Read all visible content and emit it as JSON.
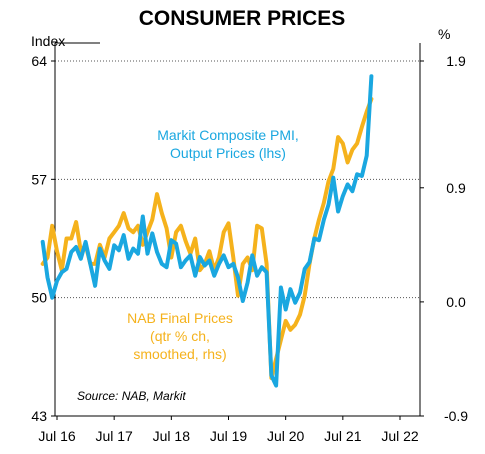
{
  "chart_data": {
    "type": "line",
    "title": "CONSUMER PRICES",
    "left_axis_unit": "Index",
    "right_axis_unit": "%",
    "left_ylim": [
      43,
      64
    ],
    "right_ylim": [
      -0.9,
      1.9
    ],
    "left_ticks": [
      "64",
      "57",
      "50",
      "43"
    ],
    "right_ticks": [
      "1.9",
      "0.9",
      "0.0",
      "-0.9"
    ],
    "x_ticks": [
      "Jul 16",
      "Jul 17",
      "Jul 18",
      "Jul 19",
      "Jul 20",
      "Jul 21",
      "Jul 22"
    ],
    "x_tick_dates": [
      "2016-07",
      "2017-07",
      "2018-07",
      "2019-07",
      "2020-07",
      "2021-07",
      "2022-07"
    ],
    "grid": "horizontal dotted at 64, 57 and 50 (left axis)",
    "series": [
      {
        "name": "Markit Composite PMI, Output Prices (lhs)",
        "label_lines": [
          "Markit Composite PMI,",
          "Output Prices (lhs)"
        ],
        "axis": "left",
        "color": "#1aa7e0",
        "points": [
          [
            "2016-04",
            53.3
          ],
          [
            "2016-05",
            51.2
          ],
          [
            "2016-06",
            50.0
          ],
          [
            "2016-07",
            51.0
          ],
          [
            "2016-08",
            51.5
          ],
          [
            "2016-09",
            51.7
          ],
          [
            "2016-10",
            52.7
          ],
          [
            "2016-11",
            53.0
          ],
          [
            "2016-12",
            52.3
          ],
          [
            "2017-01",
            53.3
          ],
          [
            "2017-02",
            52.0
          ],
          [
            "2017-03",
            50.7
          ],
          [
            "2017-04",
            52.9
          ],
          [
            "2017-05",
            52.2
          ],
          [
            "2017-06",
            51.7
          ],
          [
            "2017-07",
            53.1
          ],
          [
            "2017-08",
            52.8
          ],
          [
            "2017-09",
            53.7
          ],
          [
            "2017-10",
            52.3
          ],
          [
            "2017-11",
            52.9
          ],
          [
            "2017-12",
            52.6
          ],
          [
            "2018-01",
            54.8
          ],
          [
            "2018-02",
            52.6
          ],
          [
            "2018-03",
            53.8
          ],
          [
            "2018-04",
            52.7
          ],
          [
            "2018-05",
            52.0
          ],
          [
            "2018-06",
            51.8
          ],
          [
            "2018-07",
            53.4
          ],
          [
            "2018-08",
            53.2
          ],
          [
            "2018-09",
            51.8
          ],
          [
            "2018-10",
            52.2
          ],
          [
            "2018-11",
            52.5
          ],
          [
            "2018-12",
            51.3
          ],
          [
            "2019-01",
            52.4
          ],
          [
            "2019-02",
            51.9
          ],
          [
            "2019-03",
            52.2
          ],
          [
            "2019-04",
            51.3
          ],
          [
            "2019-05",
            52.0
          ],
          [
            "2019-06",
            52.5
          ],
          [
            "2019-07",
            51.8
          ],
          [
            "2019-08",
            52.0
          ],
          [
            "2019-09",
            51.2
          ],
          [
            "2019-10",
            49.8
          ],
          [
            "2019-11",
            50.9
          ],
          [
            "2019-12",
            52.5
          ],
          [
            "2020-01",
            51.3
          ],
          [
            "2020-02",
            51.8
          ],
          [
            "2020-03",
            51.5
          ],
          [
            "2020-04",
            45.4
          ],
          [
            "2020-05",
            44.8
          ],
          [
            "2020-06",
            50.6
          ],
          [
            "2020-07",
            49.3
          ],
          [
            "2020-08",
            50.5
          ],
          [
            "2020-09",
            49.7
          ],
          [
            "2020-10",
            50.3
          ],
          [
            "2020-11",
            51.7
          ],
          [
            "2020-12",
            52.1
          ],
          [
            "2021-01",
            53.5
          ],
          [
            "2021-02",
            53.4
          ],
          [
            "2021-03",
            54.6
          ],
          [
            "2021-04",
            55.5
          ],
          [
            "2021-05",
            57.1
          ],
          [
            "2021-06",
            55.1
          ],
          [
            "2021-07",
            56.0
          ],
          [
            "2021-08",
            56.7
          ],
          [
            "2021-09",
            56.3
          ],
          [
            "2021-10",
            57.3
          ],
          [
            "2021-11",
            57.2
          ],
          [
            "2021-12",
            58.4
          ],
          [
            "2022-01",
            63.1
          ]
        ]
      },
      {
        "name": "NAB Final Prices (qtr % ch, smoothed, rhs)",
        "label_lines": [
          "NAB Final Prices",
          "(qtr % ch,",
          "smoothed, rhs)"
        ],
        "axis": "right",
        "color": "#f5b21c",
        "points": [
          [
            "2016-04",
            0.3
          ],
          [
            "2016-05",
            0.35
          ],
          [
            "2016-06",
            0.6
          ],
          [
            "2016-07",
            0.4
          ],
          [
            "2016-08",
            0.25
          ],
          [
            "2016-09",
            0.5
          ],
          [
            "2016-10",
            0.5
          ],
          [
            "2016-11",
            0.63
          ],
          [
            "2016-12",
            0.4
          ],
          [
            "2017-01",
            0.45
          ],
          [
            "2017-02",
            0.3
          ],
          [
            "2017-03",
            0.3
          ],
          [
            "2017-04",
            0.45
          ],
          [
            "2017-05",
            0.35
          ],
          [
            "2017-06",
            0.5
          ],
          [
            "2017-07",
            0.55
          ],
          [
            "2017-08",
            0.6
          ],
          [
            "2017-09",
            0.7
          ],
          [
            "2017-10",
            0.58
          ],
          [
            "2017-11",
            0.55
          ],
          [
            "2017-12",
            0.6
          ],
          [
            "2018-01",
            0.45
          ],
          [
            "2018-02",
            0.55
          ],
          [
            "2018-03",
            0.65
          ],
          [
            "2018-04",
            0.85
          ],
          [
            "2018-05",
            0.7
          ],
          [
            "2018-06",
            0.58
          ],
          [
            "2018-07",
            0.35
          ],
          [
            "2018-08",
            0.55
          ],
          [
            "2018-09",
            0.6
          ],
          [
            "2018-10",
            0.48
          ],
          [
            "2018-11",
            0.38
          ],
          [
            "2018-12",
            0.5
          ],
          [
            "2019-01",
            0.25
          ],
          [
            "2019-02",
            0.3
          ],
          [
            "2019-03",
            0.4
          ],
          [
            "2019-04",
            0.25
          ],
          [
            "2019-05",
            0.35
          ],
          [
            "2019-06",
            0.55
          ],
          [
            "2019-07",
            0.62
          ],
          [
            "2019-08",
            0.35
          ],
          [
            "2019-09",
            0.05
          ],
          [
            "2019-10",
            0.3
          ],
          [
            "2019-11",
            0.35
          ],
          [
            "2019-12",
            0.25
          ],
          [
            "2020-01",
            0.6
          ],
          [
            "2020-02",
            0.58
          ],
          [
            "2020-03",
            0.3
          ],
          [
            "2020-04",
            -0.6
          ],
          [
            "2020-05",
            -0.45
          ],
          [
            "2020-06",
            -0.3
          ],
          [
            "2020-07",
            -0.15
          ],
          [
            "2020-08",
            -0.22
          ],
          [
            "2020-09",
            -0.18
          ],
          [
            "2020-10",
            -0.1
          ],
          [
            "2020-11",
            0.05
          ],
          [
            "2020-12",
            0.3
          ],
          [
            "2021-01",
            0.5
          ],
          [
            "2021-02",
            0.65
          ],
          [
            "2021-03",
            0.78
          ],
          [
            "2021-04",
            0.95
          ],
          [
            "2021-05",
            1.05
          ],
          [
            "2021-06",
            1.3
          ],
          [
            "2021-07",
            1.25
          ],
          [
            "2021-08",
            1.1
          ],
          [
            "2021-09",
            1.2
          ],
          [
            "2021-10",
            1.25
          ],
          [
            "2021-11",
            1.38
          ],
          [
            "2021-12",
            1.5
          ],
          [
            "2022-01",
            1.6
          ]
        ]
      }
    ],
    "source": "Source: NAB, Markit"
  }
}
